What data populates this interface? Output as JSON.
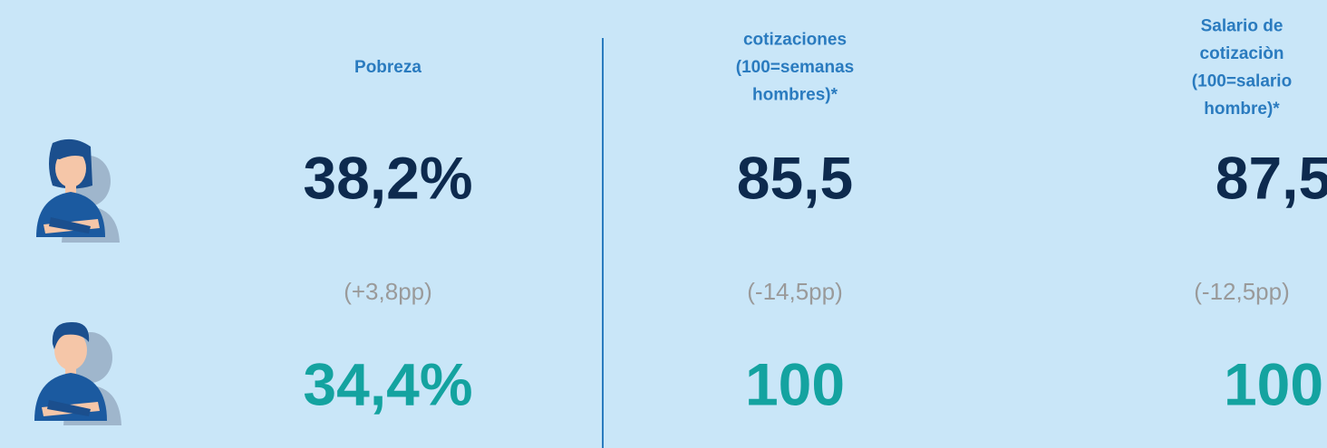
{
  "columns": [
    {
      "header": [
        "Pobreza"
      ],
      "women": "38,2%",
      "diff": "(+3,8pp)",
      "men": "34,4%"
    },
    {
      "header": [
        "cotizaciones",
        "(100=semanas",
        "hombres)*"
      ],
      "women": "85,5",
      "diff": "(-14,5pp)",
      "men": "100"
    },
    {
      "header": [
        "Salario de",
        "cotizaciòn",
        "(100=salario",
        "hombre)*"
      ],
      "women": "87,5",
      "diff": "(-12,5pp)",
      "men": "100"
    }
  ]
}
